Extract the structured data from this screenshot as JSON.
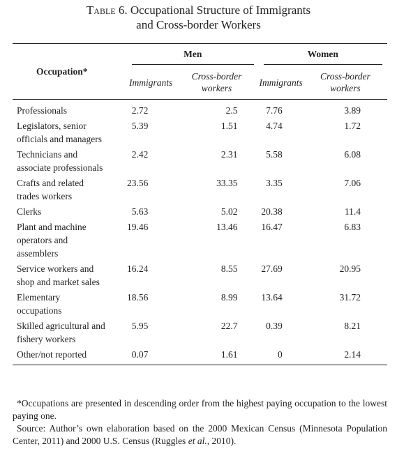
{
  "title": {
    "label": "Table 6.",
    "lines": [
      "Occupational Structure of Immigrants",
      "and Cross-border Workers"
    ]
  },
  "table": {
    "header": {
      "occupation": "Occupation*",
      "groups": [
        "Men",
        "Women"
      ],
      "subheaders": [
        "Immigrants",
        "Cross-border workers",
        "Immigrants",
        "Cross-border workers"
      ]
    },
    "rows": [
      {
        "occupation": [
          "Professionals"
        ],
        "values": [
          2.72,
          2.5,
          7.76,
          3.89
        ]
      },
      {
        "occupation": [
          "Legislators, senior",
          "officials and managers"
        ],
        "values": [
          5.39,
          1.51,
          4.74,
          1.72
        ]
      },
      {
        "occupation": [
          "Technicians and",
          "associate professionals"
        ],
        "values": [
          2.42,
          2.31,
          5.58,
          6.08
        ]
      },
      {
        "occupation": [
          "Crafts and related",
          "trades workers"
        ],
        "values": [
          23.56,
          33.35,
          3.35,
          7.06
        ]
      },
      {
        "occupation": [
          "Clerks"
        ],
        "values": [
          5.63,
          5.02,
          20.38,
          11.4
        ]
      },
      {
        "occupation": [
          "Plant and machine",
          "operators and",
          "assemblers"
        ],
        "values": [
          19.46,
          13.46,
          16.47,
          6.83
        ]
      },
      {
        "occupation": [
          "Service workers and",
          "shop and market sales"
        ],
        "values": [
          16.24,
          8.55,
          27.69,
          20.95
        ]
      },
      {
        "occupation": [
          "Elementary",
          "occupations"
        ],
        "values": [
          18.56,
          8.99,
          13.64,
          31.72
        ]
      },
      {
        "occupation": [
          "Skilled agricultural and",
          "fishery workers"
        ],
        "values": [
          5.95,
          22.7,
          0.39,
          8.21
        ]
      },
      {
        "occupation": [
          "Other/not reported"
        ],
        "values": [
          0.07,
          1.61,
          0,
          2.14
        ]
      }
    ]
  },
  "notes": {
    "footnote": "*Occupations are presented in descending order from the highest paying occupation to the lowest paying one.",
    "source": [
      "Source: Author’s own elaboration based on the 2000 Mexican Census (Minnesota Population Center, 2011) and 2000 U.S. Census (Ruggles ",
      "et al.",
      ", 2010)."
    ]
  }
}
